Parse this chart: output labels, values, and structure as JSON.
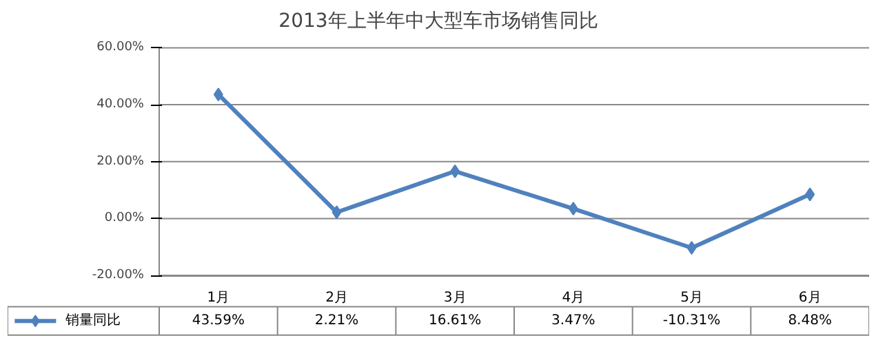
{
  "chart_data": {
    "type": "line",
    "title": "2013年上半年中大型车市场销售同比",
    "categories": [
      "1月",
      "2月",
      "3月",
      "4月",
      "5月",
      "6月"
    ],
    "series": [
      {
        "name": "销量同比",
        "color": "#4f81bd",
        "values": [
          43.59,
          2.21,
          16.61,
          3.47,
          -10.31,
          8.48
        ],
        "value_labels": [
          "43.59%",
          "2.21%",
          "16.61%",
          "3.47%",
          "-10.31%",
          "8.48%"
        ]
      }
    ],
    "ylim": [
      -20,
      60
    ],
    "yticks": [
      {
        "value": -20,
        "label": "-20.00%"
      },
      {
        "value": 0,
        "label": "0.00%"
      },
      {
        "value": 20,
        "label": "20.00%"
      },
      {
        "value": 40,
        "label": "40.00%"
      },
      {
        "value": 60,
        "label": "60.00%"
      }
    ],
    "grid": "y",
    "legend": "bottom",
    "marker": "diamond",
    "line_style": "solid"
  }
}
